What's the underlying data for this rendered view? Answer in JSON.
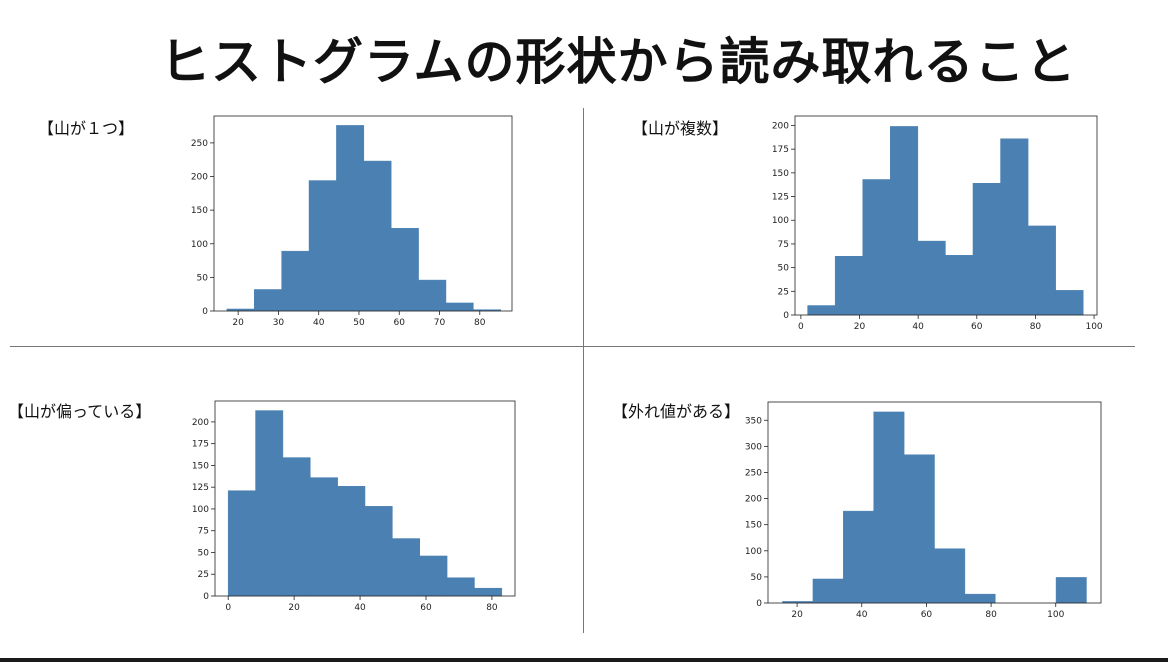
{
  "slide": {
    "title": "ヒストグラムの形状から読み取れること"
  },
  "panels": [
    {
      "label": "【山が１つ】"
    },
    {
      "label": "【山が複数】"
    },
    {
      "label": "【山が偏っている】"
    },
    {
      "label": "【外れ値がある】"
    }
  ],
  "chart_data": [
    {
      "type": "bar",
      "bin_edges": [
        17.2,
        24.0,
        30.8,
        37.6,
        44.4,
        51.2,
        58.0,
        64.8,
        71.6,
        78.4,
        85.2
      ],
      "values": [
        3,
        32,
        89,
        194,
        276,
        223,
        123,
        46,
        12,
        2
      ],
      "xlim": [
        14,
        88
      ],
      "ylim": [
        0,
        290
      ],
      "xticks": [
        20,
        30,
        40,
        50,
        60,
        70,
        80
      ],
      "yticks": [
        0,
        50,
        100,
        150,
        200,
        250
      ],
      "color": "#4a80b2"
    },
    {
      "type": "bar",
      "bin_edges": [
        2.3,
        11.7,
        21.1,
        30.5,
        39.9,
        49.3,
        58.7,
        68.1,
        77.5,
        86.9,
        96.3
      ],
      "values": [
        10,
        62,
        143,
        199,
        78,
        63,
        139,
        186,
        94,
        26
      ],
      "xlim": [
        -2,
        101
      ],
      "ylim": [
        0,
        210
      ],
      "xticks": [
        0,
        20,
        40,
        60,
        80,
        100
      ],
      "yticks": [
        0,
        25,
        50,
        75,
        100,
        125,
        150,
        175,
        200
      ],
      "color": "#4a80b2"
    },
    {
      "type": "bar",
      "bin_edges": [
        0,
        8.3,
        16.6,
        24.9,
        33.2,
        41.5,
        49.8,
        58.1,
        66.4,
        74.7,
        83.0
      ],
      "values": [
        121,
        213,
        159,
        136,
        126,
        103,
        66,
        46,
        21,
        9
      ],
      "xlim": [
        -4,
        87
      ],
      "ylim": [
        0,
        224
      ],
      "xticks": [
        0,
        20,
        40,
        60,
        80
      ],
      "yticks": [
        0,
        25,
        50,
        75,
        100,
        125,
        150,
        175,
        200
      ],
      "color": "#4a80b2"
    },
    {
      "type": "bar",
      "bin_edges": [
        15.5,
        24.9,
        34.3,
        43.7,
        53.1,
        62.5,
        71.9,
        81.3,
        90.7,
        100.1,
        109.5
      ],
      "values": [
        3,
        46,
        176,
        366,
        284,
        104,
        17,
        0,
        0,
        49
      ],
      "xlim": [
        11,
        114
      ],
      "ylim": [
        0,
        385
      ],
      "xticks": [
        20,
        40,
        60,
        80,
        100
      ],
      "yticks": [
        0,
        50,
        100,
        150,
        200,
        250,
        300,
        350
      ],
      "color": "#4a80b2"
    }
  ]
}
